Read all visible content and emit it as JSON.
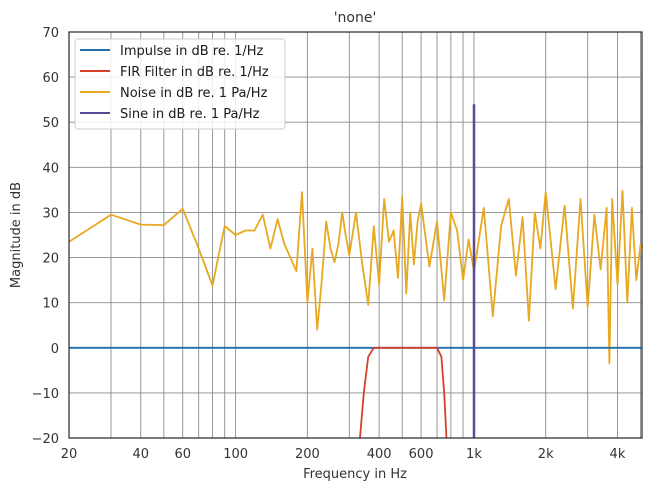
{
  "chart_data": {
    "type": "line",
    "title": "'none'",
    "xlabel": "Frequency in Hz",
    "ylabel": "Magnitude in dB",
    "xscale": "log",
    "xlim": [
      20,
      5070
    ],
    "ylim": [
      -20,
      70
    ],
    "grid": true,
    "legend_position": "upper left",
    "x_ticks": [
      {
        "value": 20,
        "label": "20"
      },
      {
        "value": 40,
        "label": "40"
      },
      {
        "value": 60,
        "label": "60"
      },
      {
        "value": 100,
        "label": "100"
      },
      {
        "value": 200,
        "label": "200"
      },
      {
        "value": 400,
        "label": "400"
      },
      {
        "value": 600,
        "label": "600"
      },
      {
        "value": 1000,
        "label": "1k"
      },
      {
        "value": 2000,
        "label": "2k"
      },
      {
        "value": 4000,
        "label": "4k"
      }
    ],
    "y_ticks": [
      -20,
      -10,
      0,
      10,
      20,
      30,
      40,
      50,
      60,
      70
    ],
    "y_tick_labels": [
      "−20",
      "−10",
      "0",
      "10",
      "20",
      "30",
      "40",
      "50",
      "60",
      "70"
    ],
    "series": [
      {
        "name": "Impulse in dB re. 1/Hz",
        "color": "#1f6fad",
        "x": [
          20,
          5070
        ],
        "y": [
          0,
          0
        ]
      },
      {
        "name": "FIR Filter in dB re. 1/Hz",
        "color": "#d6402b",
        "x": [
          330,
          345,
          360,
          380,
          400,
          500,
          600,
          700,
          730,
          750,
          770
        ],
        "y": [
          -22,
          -10,
          -2,
          0,
          0,
          0,
          0,
          0,
          -2,
          -10,
          -22
        ]
      },
      {
        "name": "Noise in dB re. 1 Pa/Hz",
        "color": "#e8a820",
        "x": [
          20,
          30,
          40,
          50,
          60,
          70,
          80,
          90,
          100,
          110,
          120,
          130,
          140,
          150,
          160,
          180,
          190,
          200,
          210,
          220,
          230,
          240,
          250,
          260,
          270,
          280,
          290,
          300,
          320,
          340,
          360,
          380,
          400,
          420,
          440,
          460,
          480,
          500,
          520,
          540,
          560,
          580,
          600,
          650,
          700,
          750,
          800,
          850,
          900,
          950,
          1000,
          1100,
          1200,
          1300,
          1400,
          1500,
          1600,
          1700,
          1800,
          1900,
          2000,
          2200,
          2400,
          2600,
          2800,
          3000,
          3200,
          3400,
          3600,
          3700,
          3800,
          4000,
          4200,
          4400,
          4600,
          4800,
          5000
        ],
        "y": [
          23.5,
          29.5,
          27.3,
          27.2,
          30.8,
          22,
          13.8,
          27,
          25,
          26,
          26,
          29.5,
          22,
          28.5,
          23,
          17,
          34.5,
          10,
          22,
          4,
          15,
          28,
          22,
          19,
          23,
          30,
          24.8,
          20.5,
          30,
          18.5,
          9.5,
          27,
          14,
          33,
          23.5,
          26,
          15.5,
          33.5,
          12,
          30,
          18.5,
          28,
          32,
          18,
          28,
          10.5,
          30,
          26,
          15,
          24,
          17,
          31,
          7,
          27,
          33,
          16,
          29,
          6,
          30,
          22,
          34.5,
          13,
          31.5,
          8.7,
          33,
          9,
          29.5,
          17.4,
          31,
          -3.5,
          33,
          14,
          34.8,
          10,
          31,
          15,
          23
        ]
      },
      {
        "name": "Sine in dB re. 1 Pa/Hz",
        "color": "#5a4a96",
        "x": [
          1000,
          1000
        ],
        "y": [
          -20,
          54
        ]
      }
    ]
  }
}
